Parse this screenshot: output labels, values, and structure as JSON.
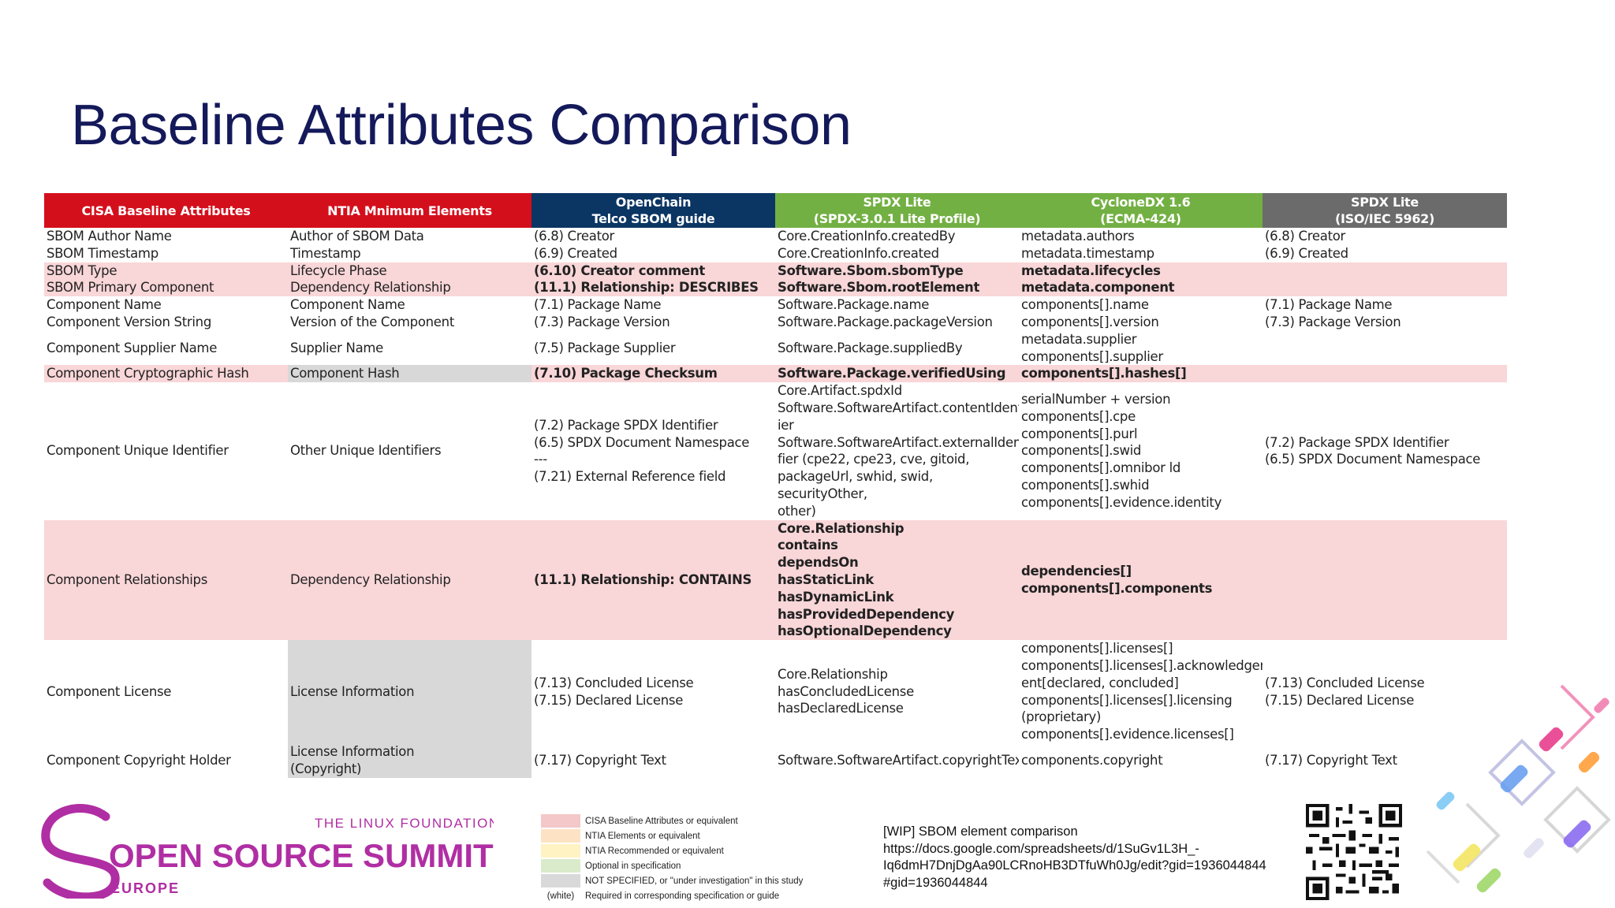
{
  "title": "Baseline Attributes Comparison",
  "table": {
    "headers": [
      [
        "CISA Baseline Attributes"
      ],
      [
        "NTIA Mnimum Elements"
      ],
      [
        "OpenChain",
        "Telco SBOM guide"
      ],
      [
        "SPDX Lite",
        "(SPDX-3.0.1 Lite Profile)"
      ],
      [
        "CycloneDX 1.6",
        "(ECMA-424)"
      ],
      [
        "SPDX Lite",
        "(ISO/IEC 5962)"
      ]
    ],
    "rows": [
      [
        "SBOM Author Name",
        "Author of SBOM Data",
        "(6.8) Creator",
        "Core.CreationInfo.createdBy",
        "metadata.authors",
        "(6.8) Creator"
      ],
      [
        "SBOM Timestamp",
        "Timestamp",
        "(6.9) Created",
        "Core.CreationInfo.created",
        "metadata.timestamp",
        "(6.9) Created"
      ],
      [
        "SBOM Type",
        "Lifecycle Phase",
        "(6.10) Creator comment",
        "Software.Sbom.sbomType",
        "metadata.lifecycles",
        ""
      ],
      [
        "SBOM Primary Component",
        "Dependency Relationship",
        "(11.1) Relationship: DESCRIBES",
        "Software.Sbom.rootElement",
        "metadata.component",
        ""
      ],
      [
        "Component Name",
        "Component Name",
        "(7.1) Package Name",
        "Software.Package.name",
        "components[].name",
        "(7.1) Package Name"
      ],
      [
        "Component Version String",
        "Version of the Component",
        "(7.3) Package Version",
        "Software.Package.packageVersion",
        "components[].version",
        "(7.3) Package Version"
      ],
      [
        "Component Supplier Name",
        "Supplier Name",
        "(7.5) Package Supplier",
        "Software.Package.suppliedBy",
        "metadata.supplier\ncomponents[].supplier",
        ""
      ],
      [
        "Component Cryptographic Hash",
        "Component Hash",
        "(7.10) Package Checksum",
        "Software.Package.verifiedUsing",
        "components[].hashes[]",
        ""
      ],
      [
        "Component Unique Identifier",
        "Other Unique Identifiers",
        "(7.2) Package SPDX Identifier\n(6.5) SPDX Document Namespace\n---\n(7.21) External Reference field",
        "Core.Artifact.spdxId\nSoftware.SoftwareArtifact.contentIdentif\nier\nSoftware.SoftwareArtifact.externalIdenti\nfier (cpe22, cpe23, cve, gitoid,\npackageUrl, swhid, swid, securityOther,\nother)",
        "serialNumber + version\ncomponents[].cpe\ncomponents[].purl\ncomponents[].swid\ncomponents[].omnibor ld\ncomponents[].swhid\ncomponents[].evidence.identity",
        "(7.2) Package SPDX Identifier\n(6.5) SPDX Document Namespace"
      ],
      [
        "Component Relationships",
        "Dependency Relationship",
        "(11.1) Relationship: CONTAINS",
        "Core.Relationship\ncontains\ndependsOn\nhasStaticLink\nhasDynamicLink\nhasProvidedDependency\nhasOptionalDependency",
        "dependencies[]\ncomponents[].components",
        ""
      ],
      [
        "Component License",
        "License Information",
        "(7.13) Concluded License\n(7.15) Declared License",
        "Core.Relationship\nhasConcludedLicense\nhasDeclaredLicense",
        "components[].licenses[]\ncomponents[].licenses[].acknowledgem\nent[declared, concluded]\ncomponents[].licenses[].licensing\n(proprietary)\ncomponents[].evidence.licenses[]",
        "(7.13) Concluded License\n(7.15) Declared License"
      ],
      [
        "Component Copyright Holder",
        "License Information\n(Copyright)",
        "(7.17) Copyright Text",
        "Software.SoftwareArtifact.copyrightText",
        "components.copyright",
        "(7.17) Copyright Text"
      ]
    ]
  },
  "legend": [
    {
      "label": "CISA Baseline Attributes or equivalent",
      "color": "#f4c7c9"
    },
    {
      "label": "NTIA Elements or equivalent",
      "color": "#fde3c4"
    },
    {
      "label": "NTIA Recommended or equivalent",
      "color": "#fff3c4"
    },
    {
      "label": "Optional in specification",
      "color": "#d9ebcb"
    },
    {
      "label": "NOT SPECIFIED, or \"under investigation\" in this study",
      "color": "#d9d9d9"
    },
    {
      "label": "Required in corresponding specification or guide",
      "swatch_text": "(white)"
    }
  ],
  "note": {
    "line1": "[WIP] SBOM element comparison",
    "line2": "https://docs.google.com/spreadsheets/d/1SuGv1L3H_-",
    "line3": "Iq6dmH7DnjDgAa90LCRnoHB3DTfuWh0Jg/edit?gid=1936044844",
    "line4": "#gid=1936044844"
  },
  "logo": {
    "org": "THE LINUX FOUNDATION",
    "event": "OPEN SOURCE SUMMIT",
    "region": "EUROPE"
  },
  "colors": {
    "title": "#14195a",
    "header_red": "#d40f1c",
    "header_navy": "#0b3563",
    "header_green": "#73b043",
    "header_gray": "#6b6b6b",
    "row_pink": "#f9d6d8",
    "cell_gray": "#d8d8d8",
    "brand_magenta": "#b02ea3"
  }
}
